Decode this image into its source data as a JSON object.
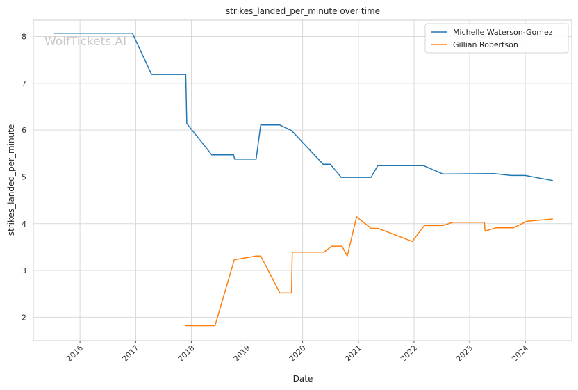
{
  "chart_data": {
    "type": "line",
    "title": "strikes_landed_per_minute over time",
    "xlabel": "Date",
    "ylabel": "strikes_landed_per_minute",
    "x_type": "date",
    "xlim": [
      "2015-03-01",
      "2024-11-01"
    ],
    "ylim": [
      1.5,
      8.35
    ],
    "x_ticks": [
      {
        "date": "2016-01-01",
        "label": "2016"
      },
      {
        "date": "2017-01-01",
        "label": "2017"
      },
      {
        "date": "2018-01-01",
        "label": "2018"
      },
      {
        "date": "2019-01-01",
        "label": "2019"
      },
      {
        "date": "2020-01-01",
        "label": "2020"
      },
      {
        "date": "2021-01-01",
        "label": "2021"
      },
      {
        "date": "2022-01-01",
        "label": "2022"
      },
      {
        "date": "2023-01-01",
        "label": "2023"
      },
      {
        "date": "2024-01-01",
        "label": "2024"
      }
    ],
    "y_ticks": [
      {
        "value": 2,
        "label": "2"
      },
      {
        "value": 3,
        "label": "3"
      },
      {
        "value": 4,
        "label": "4"
      },
      {
        "value": 5,
        "label": "5"
      },
      {
        "value": 6,
        "label": "6"
      },
      {
        "value": 7,
        "label": "7"
      },
      {
        "value": 8,
        "label": "8"
      }
    ],
    "grid": true,
    "legend_position": "top-right",
    "watermark": "WolfTickets.AI",
    "series": [
      {
        "name": "Michelle Waterson-Gomez",
        "color": "#1f77b4",
        "points": [
          [
            "2015-07-15",
            8.07
          ],
          [
            "2016-12-10",
            8.07
          ],
          [
            "2017-04-15",
            7.19
          ],
          [
            "2017-11-25",
            7.19
          ],
          [
            "2017-12-02",
            6.14
          ],
          [
            "2018-05-15",
            5.47
          ],
          [
            "2018-10-05",
            5.47
          ],
          [
            "2018-10-12",
            5.38
          ],
          [
            "2019-03-02",
            5.38
          ],
          [
            "2019-04-01",
            6.11
          ],
          [
            "2019-08-05",
            6.11
          ],
          [
            "2019-10-20",
            5.99
          ],
          [
            "2020-05-15",
            5.27
          ],
          [
            "2020-07-01",
            5.27
          ],
          [
            "2020-09-10",
            4.99
          ],
          [
            "2021-03-25",
            4.99
          ],
          [
            "2021-05-08",
            5.24
          ],
          [
            "2022-03-05",
            5.24
          ],
          [
            "2022-07-10",
            5.06
          ],
          [
            "2023-06-10",
            5.07
          ],
          [
            "2023-10-01",
            5.03
          ],
          [
            "2024-01-01",
            5.03
          ],
          [
            "2024-06-30",
            4.92
          ]
        ]
      },
      {
        "name": "Gillian Robertson",
        "color": "#ff7f0e",
        "points": [
          [
            "2017-11-20",
            1.82
          ],
          [
            "2018-06-05",
            1.82
          ],
          [
            "2018-10-10",
            3.23
          ],
          [
            "2019-03-02",
            3.31
          ],
          [
            "2019-04-01",
            3.31
          ],
          [
            "2019-08-05",
            2.52
          ],
          [
            "2019-10-20",
            2.52
          ],
          [
            "2019-10-25",
            3.39
          ],
          [
            "2020-05-20",
            3.39
          ],
          [
            "2020-07-10",
            3.52
          ],
          [
            "2020-09-15",
            3.52
          ],
          [
            "2020-10-20",
            3.31
          ],
          [
            "2020-12-20",
            4.15
          ],
          [
            "2021-03-25",
            3.9
          ],
          [
            "2021-05-10",
            3.9
          ],
          [
            "2021-12-20",
            3.62
          ],
          [
            "2022-03-10",
            3.96
          ],
          [
            "2022-07-10",
            3.96
          ],
          [
            "2022-09-15",
            4.03
          ],
          [
            "2023-04-08",
            4.03
          ],
          [
            "2023-04-12",
            3.84
          ],
          [
            "2023-06-20",
            3.91
          ],
          [
            "2023-10-15",
            3.91
          ],
          [
            "2024-01-10",
            4.05
          ],
          [
            "2024-06-30",
            4.1
          ]
        ]
      }
    ]
  }
}
